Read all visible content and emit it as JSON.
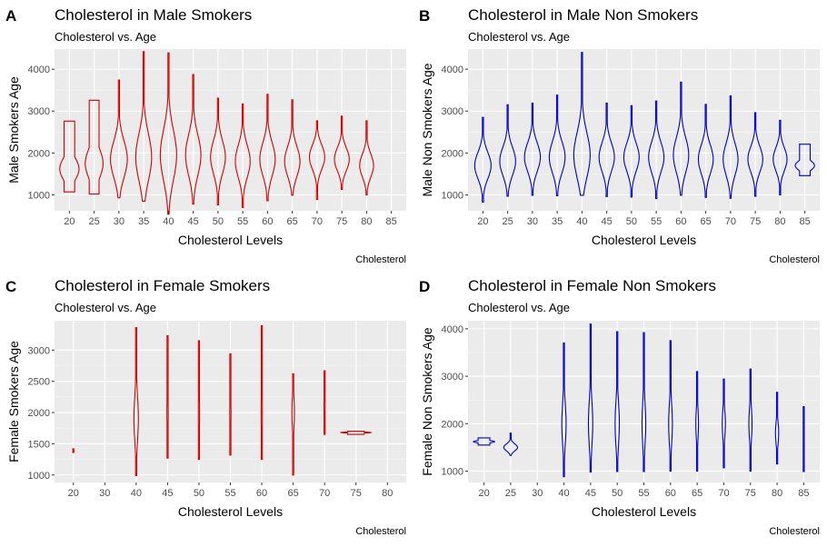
{
  "figure": {
    "panels": [
      {
        "tag": "A",
        "title": "Cholesterol in Male Smokers",
        "subtitle": "Cholesterol vs. Age",
        "xlabel": "Cholesterol Levels",
        "ylabel": "Male Smokers Age",
        "caption": "Cholesterol",
        "color": "#d40000",
        "type": "violin",
        "categories": [
          20,
          25,
          30,
          35,
          40,
          45,
          50,
          55,
          60,
          65,
          70,
          75,
          80,
          85
        ],
        "yticks": [
          1000,
          2000,
          3000,
          4000
        ],
        "ylim": [
          620,
          4480
        ],
        "violins": [
          {
            "x": 20,
            "lo": 1070,
            "hi": 2760,
            "mode": 1620,
            "w": 0.78
          },
          {
            "x": 25,
            "lo": 1020,
            "hi": 3260,
            "mode": 1750,
            "w": 0.72
          },
          {
            "x": 30,
            "lo": 930,
            "hi": 3740,
            "mode": 1850,
            "w": 0.68
          },
          {
            "x": 35,
            "lo": 850,
            "hi": 4420,
            "mode": 1900,
            "w": 0.64
          },
          {
            "x": 40,
            "lo": 540,
            "hi": 4390,
            "mode": 1950,
            "w": 0.66
          },
          {
            "x": 45,
            "lo": 780,
            "hi": 3870,
            "mode": 1950,
            "w": 0.62
          },
          {
            "x": 50,
            "lo": 760,
            "hi": 3310,
            "mode": 1900,
            "w": 0.6
          },
          {
            "x": 55,
            "lo": 700,
            "hi": 3170,
            "mode": 1800,
            "w": 0.6
          },
          {
            "x": 60,
            "lo": 860,
            "hi": 3400,
            "mode": 1850,
            "w": 0.62
          },
          {
            "x": 65,
            "lo": 990,
            "hi": 3270,
            "mode": 1800,
            "w": 0.62
          },
          {
            "x": 70,
            "lo": 890,
            "hi": 2770,
            "mode": 1900,
            "w": 0.62
          },
          {
            "x": 75,
            "lo": 1130,
            "hi": 2880,
            "mode": 1850,
            "w": 0.6
          },
          {
            "x": 80,
            "lo": 1000,
            "hi": 2770,
            "mode": 1700,
            "w": 0.56
          }
        ]
      },
      {
        "tag": "B",
        "title": "Cholesterol in Male Non Smokers",
        "subtitle": "Cholesterol vs. Age",
        "xlabel": "Cholesterol Levels",
        "ylabel": "Male Non Smokers Age",
        "caption": "Cholesterol",
        "color": "#0000cc",
        "type": "violin",
        "categories": [
          20,
          25,
          30,
          35,
          40,
          45,
          50,
          55,
          60,
          65,
          70,
          75,
          80,
          85
        ],
        "yticks": [
          1000,
          2000,
          3000,
          4000
        ],
        "ylim": [
          620,
          4480
        ],
        "violins": [
          {
            "x": 20,
            "lo": 830,
            "hi": 2850,
            "mode": 1700,
            "w": 0.66
          },
          {
            "x": 25,
            "lo": 970,
            "hi": 3150,
            "mode": 1800,
            "w": 0.64
          },
          {
            "x": 30,
            "lo": 990,
            "hi": 3190,
            "mode": 1900,
            "w": 0.64
          },
          {
            "x": 35,
            "lo": 980,
            "hi": 3380,
            "mode": 1900,
            "w": 0.64
          },
          {
            "x": 40,
            "lo": 990,
            "hi": 4400,
            "mode": 1950,
            "w": 0.66
          },
          {
            "x": 45,
            "lo": 960,
            "hi": 3190,
            "mode": 1900,
            "w": 0.62
          },
          {
            "x": 50,
            "lo": 950,
            "hi": 3130,
            "mode": 1900,
            "w": 0.62
          },
          {
            "x": 55,
            "lo": 910,
            "hi": 3240,
            "mode": 1900,
            "w": 0.62
          },
          {
            "x": 60,
            "lo": 990,
            "hi": 3690,
            "mode": 1950,
            "w": 0.62
          },
          {
            "x": 65,
            "lo": 940,
            "hi": 3160,
            "mode": 1850,
            "w": 0.6
          },
          {
            "x": 70,
            "lo": 920,
            "hi": 3360,
            "mode": 1850,
            "w": 0.6
          },
          {
            "x": 75,
            "lo": 970,
            "hi": 2960,
            "mode": 1850,
            "w": 0.6
          },
          {
            "x": 80,
            "lo": 1000,
            "hi": 2780,
            "mode": 1850,
            "w": 0.56
          },
          {
            "x": 85,
            "lo": 1460,
            "hi": 2210,
            "mode": 1700,
            "w": 0.78
          }
        ]
      },
      {
        "tag": "C",
        "title": "Cholesterol in Female Smokers",
        "subtitle": "Cholesterol vs. Age",
        "xlabel": "Cholesterol Levels",
        "ylabel": "Female Smokers Age",
        "caption": "Cholesterol",
        "color": "#d40000",
        "type": "violin",
        "categories": [
          20,
          30,
          40,
          45,
          50,
          55,
          60,
          65,
          70,
          75,
          80
        ],
        "yticks": [
          1000,
          1500,
          2000,
          2500,
          3000
        ],
        "ylim": [
          880,
          3470
        ],
        "violins": [
          {
            "x": 20,
            "lo": 1360,
            "hi": 1420,
            "mode": 1390,
            "w": 0.02
          },
          {
            "x": 40,
            "lo": 990,
            "hi": 3360,
            "mode": 1900,
            "w": 0.14
          },
          {
            "x": 45,
            "lo": 1270,
            "hi": 3230,
            "mode": 2000,
            "w": 0.04
          },
          {
            "x": 50,
            "lo": 1250,
            "hi": 3150,
            "mode": 2000,
            "w": 0.04
          },
          {
            "x": 55,
            "lo": 1320,
            "hi": 2940,
            "mode": 2000,
            "w": 0.04
          },
          {
            "x": 60,
            "lo": 1250,
            "hi": 3390,
            "mode": 2000,
            "w": 0.04
          },
          {
            "x": 65,
            "lo": 1000,
            "hi": 2620,
            "mode": 2000,
            "w": 0.08
          },
          {
            "x": 70,
            "lo": 1650,
            "hi": 2670,
            "mode": 2100,
            "w": 0.04
          },
          {
            "x": 75,
            "lo": 1650,
            "hi": 1700,
            "mode": 1680,
            "w": 0.96
          }
        ]
      },
      {
        "tag": "D",
        "title": "Cholesterol in Female Non Smokers",
        "subtitle": "Cholesterol vs. Age",
        "xlabel": "Cholesterol Levels",
        "ylabel": "Female Non Smokers Age",
        "caption": "Cholesterol",
        "color": "#0000cc",
        "type": "violin",
        "categories": [
          20,
          25,
          30,
          40,
          45,
          50,
          55,
          60,
          65,
          70,
          75,
          80,
          85
        ],
        "yticks": [
          1000,
          2000,
          3000,
          4000
        ],
        "ylim": [
          760,
          4170
        ],
        "violins": [
          {
            "x": 20,
            "lo": 1550,
            "hi": 1700,
            "mode": 1620,
            "w": 0.8
          },
          {
            "x": 25,
            "lo": 1330,
            "hi": 1800,
            "mode": 1500,
            "w": 0.52
          },
          {
            "x": 40,
            "lo": 880,
            "hi": 3700,
            "mode": 2000,
            "w": 0.16
          },
          {
            "x": 45,
            "lo": 980,
            "hi": 4100,
            "mode": 2000,
            "w": 0.16
          },
          {
            "x": 50,
            "lo": 990,
            "hi": 3940,
            "mode": 2000,
            "w": 0.16
          },
          {
            "x": 55,
            "lo": 990,
            "hi": 3920,
            "mode": 2000,
            "w": 0.14
          },
          {
            "x": 60,
            "lo": 1000,
            "hi": 3750,
            "mode": 2000,
            "w": 0.14
          },
          {
            "x": 65,
            "lo": 1000,
            "hi": 3100,
            "mode": 2000,
            "w": 0.1
          },
          {
            "x": 70,
            "lo": 1070,
            "hi": 2940,
            "mode": 2000,
            "w": 0.12
          },
          {
            "x": 75,
            "lo": 1000,
            "hi": 3150,
            "mode": 2000,
            "w": 0.12
          },
          {
            "x": 80,
            "lo": 1150,
            "hi": 2660,
            "mode": 1800,
            "w": 0.12
          },
          {
            "x": 85,
            "lo": 990,
            "hi": 2360,
            "mode": 1700,
            "w": 0.02
          }
        ]
      }
    ]
  },
  "chart_data": [
    {
      "type": "violin",
      "title": "Cholesterol in Male Smokers",
      "subtitle": "Cholesterol vs. Age",
      "xlabel": "Cholesterol Levels",
      "ylabel": "Male Smokers Age",
      "categories": [
        20,
        25,
        30,
        35,
        40,
        45,
        50,
        55,
        60,
        65,
        70,
        75,
        80,
        85
      ],
      "series": [
        {
          "values_range": [
            [
              1070,
              2760
            ],
            [
              1020,
              3260
            ],
            [
              930,
              3740
            ],
            [
              850,
              4420
            ],
            [
              540,
              4390
            ],
            [
              780,
              3870
            ],
            [
              760,
              3310
            ],
            [
              700,
              3170
            ],
            [
              860,
              3400
            ],
            [
              990,
              3270
            ],
            [
              890,
              2770
            ],
            [
              1130,
              2880
            ],
            [
              1000,
              2770
            ],
            null
          ]
        }
      ],
      "ylim": [
        620,
        4480
      ],
      "grid": true
    },
    {
      "type": "violin",
      "title": "Cholesterol in Male Non Smokers",
      "subtitle": "Cholesterol vs. Age",
      "xlabel": "Cholesterol Levels",
      "ylabel": "Male Non Smokers Age",
      "categories": [
        20,
        25,
        30,
        35,
        40,
        45,
        50,
        55,
        60,
        65,
        70,
        75,
        80,
        85
      ],
      "series": [
        {
          "values_range": [
            [
              830,
              2850
            ],
            [
              970,
              3150
            ],
            [
              990,
              3190
            ],
            [
              980,
              3380
            ],
            [
              990,
              4400
            ],
            [
              960,
              3190
            ],
            [
              950,
              3130
            ],
            [
              910,
              3240
            ],
            [
              990,
              3690
            ],
            [
              940,
              3160
            ],
            [
              920,
              3360
            ],
            [
              970,
              2960
            ],
            [
              1000,
              2780
            ],
            [
              1460,
              2210
            ]
          ]
        }
      ],
      "ylim": [
        620,
        4480
      ],
      "grid": true
    },
    {
      "type": "violin",
      "title": "Cholesterol in Female Smokers",
      "subtitle": "Cholesterol vs. Age",
      "xlabel": "Cholesterol Levels",
      "ylabel": "Female Smokers Age",
      "categories": [
        20,
        30,
        40,
        45,
        50,
        55,
        60,
        65,
        70,
        75,
        80
      ],
      "series": [
        {
          "values_range": [
            [
              1360,
              1420
            ],
            null,
            [
              990,
              3360
            ],
            [
              1270,
              3230
            ],
            [
              1250,
              3150
            ],
            [
              1320,
              2940
            ],
            [
              1250,
              3390
            ],
            [
              1000,
              2620
            ],
            [
              1650,
              2670
            ],
            [
              1650,
              1700
            ],
            null
          ]
        }
      ],
      "ylim": [
        880,
        3470
      ],
      "grid": true
    },
    {
      "type": "violin",
      "title": "Cholesterol in Female Non Smokers",
      "subtitle": "Cholesterol vs. Age",
      "xlabel": "Cholesterol Levels",
      "ylabel": "Female Non Smokers Age",
      "categories": [
        20,
        25,
        30,
        40,
        45,
        50,
        55,
        60,
        65,
        70,
        75,
        80,
        85
      ],
      "series": [
        {
          "values_range": [
            [
              1550,
              1700
            ],
            [
              1330,
              1800
            ],
            null,
            [
              880,
              3700
            ],
            [
              980,
              4100
            ],
            [
              990,
              3940
            ],
            [
              990,
              3920
            ],
            [
              1000,
              3750
            ],
            [
              1000,
              3100
            ],
            [
              1070,
              2940
            ],
            [
              1000,
              3150
            ],
            [
              1150,
              2660
            ],
            [
              990,
              2360
            ]
          ]
        }
      ],
      "ylim": [
        760,
        4170
      ],
      "grid": true
    }
  ]
}
